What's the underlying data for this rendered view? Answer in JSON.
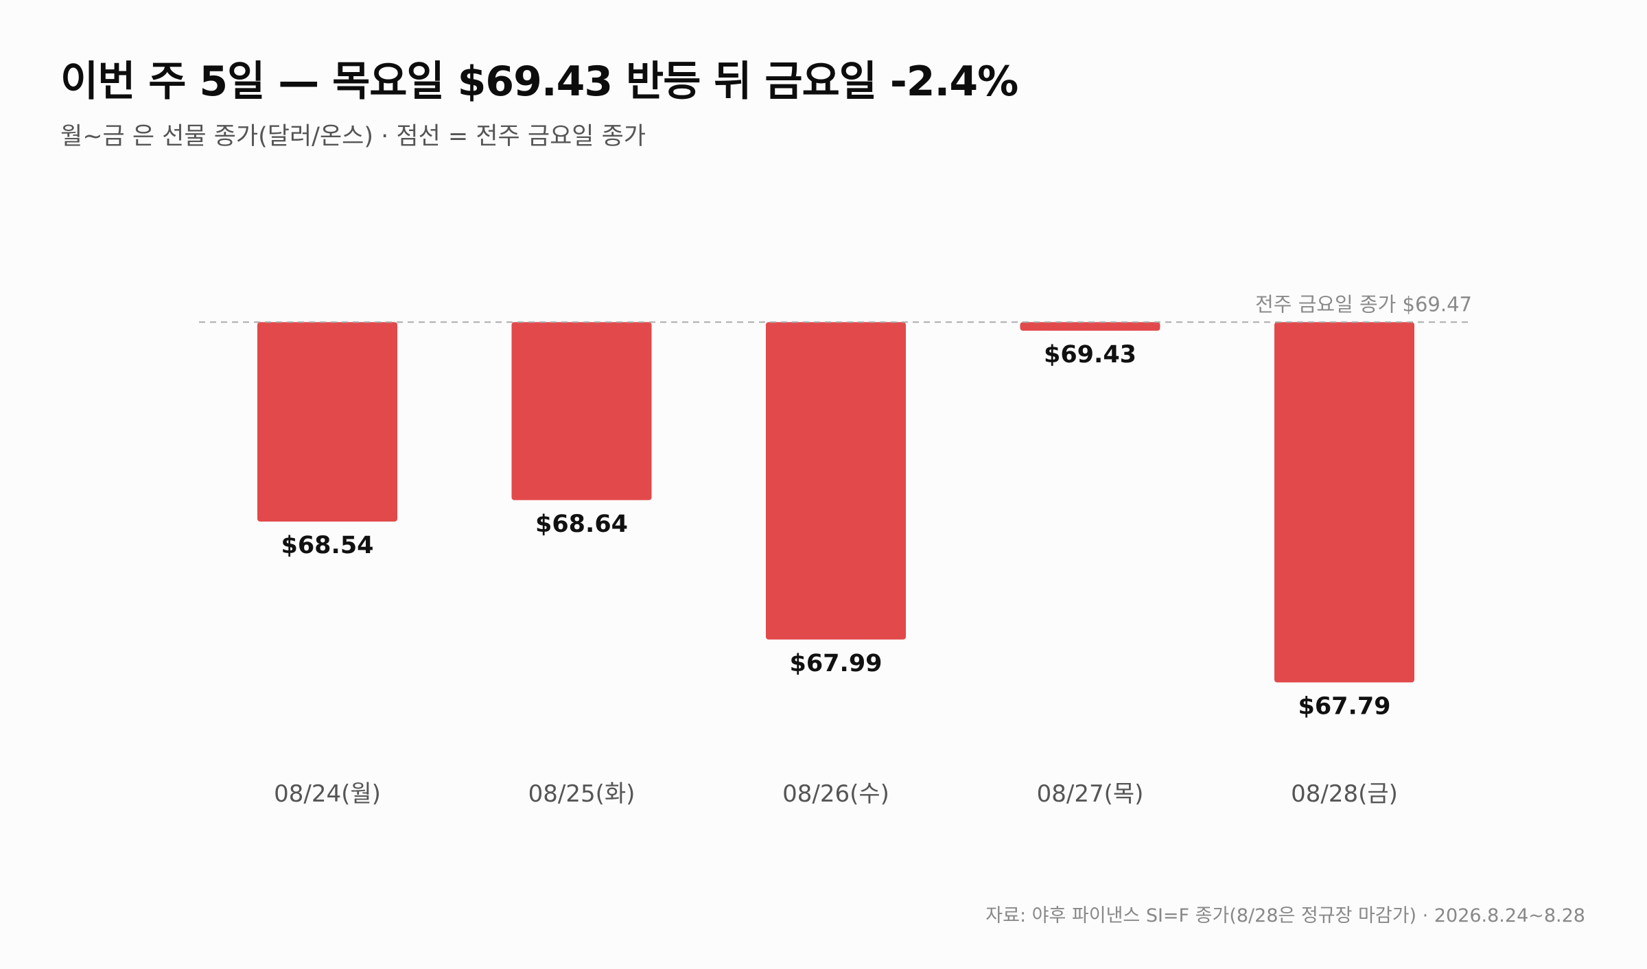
{
  "header": {
    "title": "이번 주 5일 — 목요일 $69.43 반등 뒤 금요일 -2.4%",
    "subtitle": "월~금 은 선물 종가(달러/온스) · 점선 = 전주 금요일 종가"
  },
  "footer": {
    "source": "자료: 야후 파이낸스 SI=F 종가(8/28은 정규장 마감가) · 2026.8.24~8.28"
  },
  "colors": {
    "bar": "#e2494b",
    "reference_line": "#aaaaaa"
  },
  "chart_data": {
    "type": "bar",
    "title": "이번 주 5일 — 목요일 $69.43 반등 뒤 금요일 -2.4%",
    "subtitle": "월~금 은 선물 종가(달러/온스) · 점선 = 전주 금요일 종가",
    "categories": [
      "08/24(월)",
      "08/25(화)",
      "08/26(수)",
      "08/27(목)",
      "08/28(금)"
    ],
    "values": [
      68.54,
      68.64,
      67.99,
      69.43,
      67.79
    ],
    "value_labels": [
      "$68.54",
      "$68.64",
      "$67.99",
      "$69.43",
      "$67.79"
    ],
    "baseline": {
      "value": 69.47,
      "label": "전주 금요일 종가 $69.47",
      "style": "dashed"
    },
    "ylim": [
      67.1,
      70.3
    ],
    "grid": false,
    "legend": "none"
  }
}
